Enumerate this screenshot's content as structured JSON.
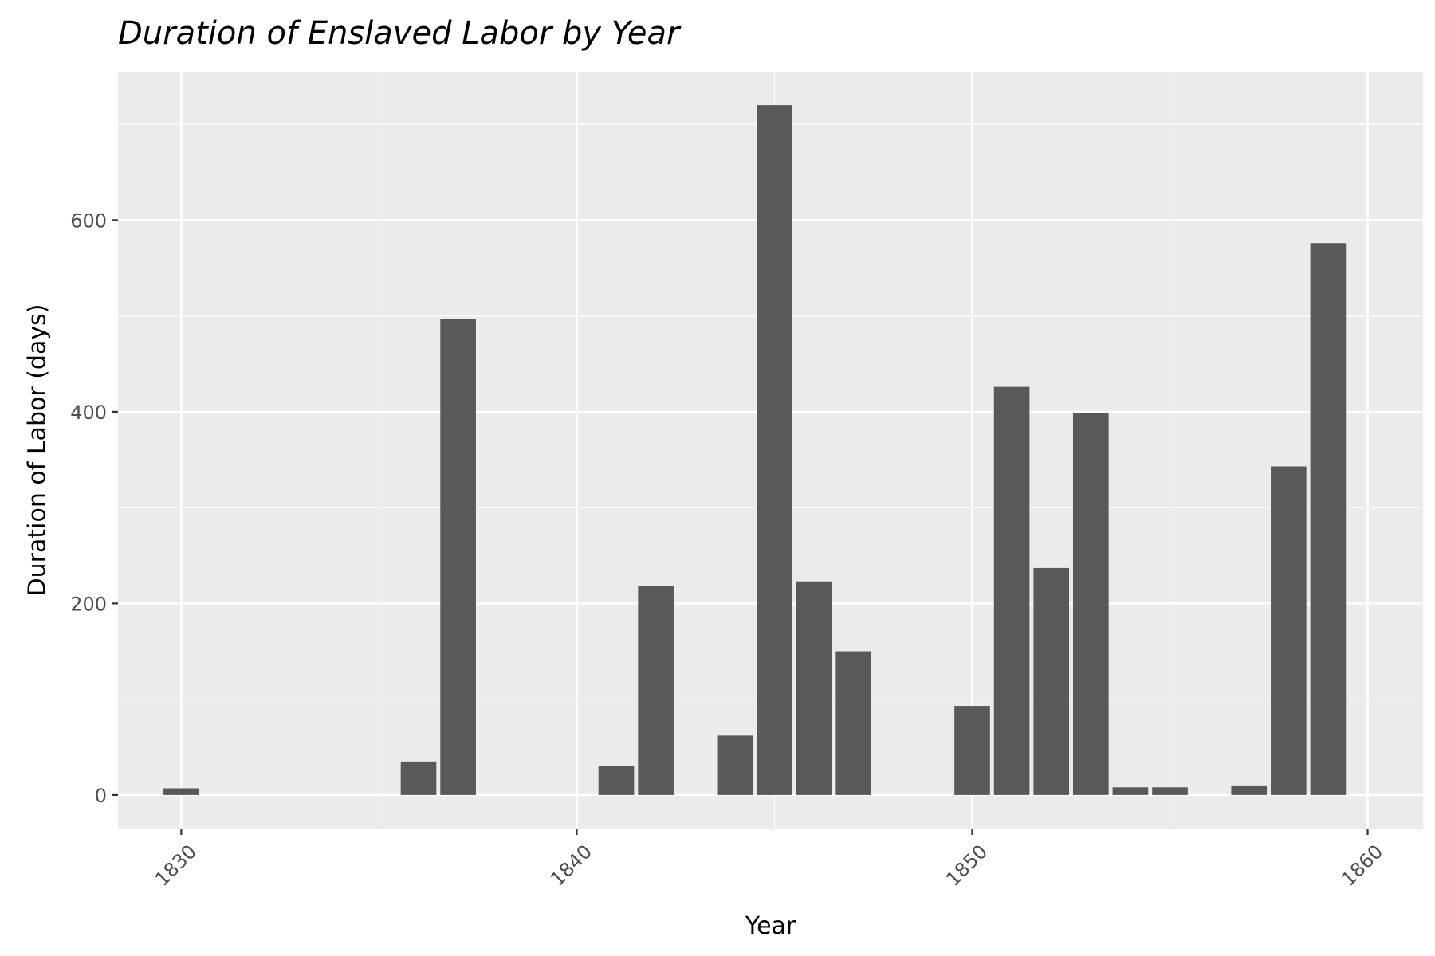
{
  "chart_data": {
    "type": "bar",
    "title": "Duration of Enslaved Labor by Year",
    "xlabel": "Year",
    "ylabel": "Duration of Labor (days)",
    "x": [
      1830,
      1836,
      1837,
      1841,
      1842,
      1844,
      1845,
      1846,
      1847,
      1850,
      1851,
      1852,
      1853,
      1854,
      1855,
      1857,
      1858,
      1859
    ],
    "values": [
      7,
      35,
      497,
      30,
      218,
      62,
      720,
      223,
      150,
      93,
      426,
      237,
      399,
      8,
      8,
      10,
      343,
      576
    ],
    "xlim": [
      1828.4,
      1861.4
    ],
    "ylim": [
      -35,
      755
    ],
    "x_ticks": [
      1830,
      1840,
      1850,
      1860
    ],
    "y_ticks": [
      0,
      200,
      400,
      600
    ],
    "x_tick_labels": [
      "1830",
      "1840",
      "1850",
      "1860"
    ],
    "y_tick_labels": [
      "0",
      "200",
      "400",
      "600"
    ],
    "grid": true,
    "panel_color": "#ebebeb",
    "bar_color": "#595959",
    "grid_color": "#ffffff"
  }
}
